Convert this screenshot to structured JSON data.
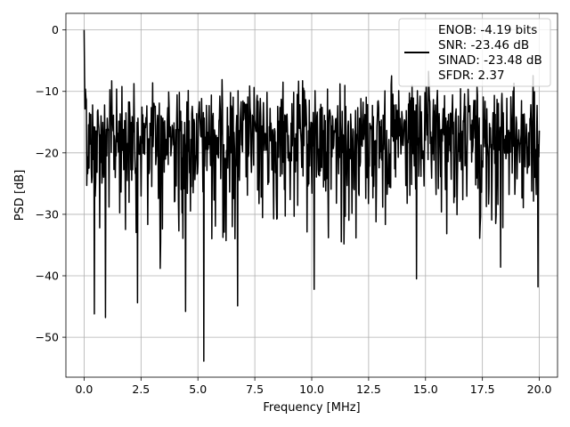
{
  "chart_data": {
    "type": "line",
    "title": "",
    "xlabel": "Frequency [MHz]",
    "ylabel": "PSD [dB]",
    "xlim": [
      -0.8,
      20.8
    ],
    "ylim": [
      -56.5,
      2.7
    ],
    "xticks": [
      0.0,
      2.5,
      5.0,
      7.5,
      10.0,
      12.5,
      15.0,
      17.5,
      20.0
    ],
    "xtick_labels": [
      "0.0",
      "2.5",
      "5.0",
      "7.5",
      "10.0",
      "12.5",
      "15.0",
      "17.5",
      "20.0"
    ],
    "yticks": [
      0,
      -10,
      -20,
      -30,
      -40,
      -50
    ],
    "ytick_labels": [
      "0",
      "−10",
      "−20",
      "−30",
      "−40",
      "−50"
    ],
    "grid": true,
    "legend_position": "top-right",
    "legend_lines": [
      "ENOB: -4.19 bits",
      "SNR: -23.46 dB",
      "SINAD: -23.48 dB",
      "SFDR: 2.37"
    ],
    "series": [
      {
        "name": "ENOB: -4.19 bits\nSNR: -23.46 dB\nSINAD: -23.48 dB\nSFDR: 2.37",
        "color": "#000000",
        "x_start": 0.0,
        "x_end": 20.0,
        "point_count": 1024,
        "noise_floor_db": -20,
        "peak": {
          "x": 0.0,
          "y": 0.0
        },
        "upper_envelope_db": -5.5,
        "notable_minima": [
          {
            "x": 0.45,
            "y": -46.2
          },
          {
            "x": 0.93,
            "y": -46.8
          },
          {
            "x": 2.35,
            "y": -44.4
          },
          {
            "x": 3.35,
            "y": -38.8
          },
          {
            "x": 4.45,
            "y": -45.8
          },
          {
            "x": 5.25,
            "y": -53.9
          },
          {
            "x": 6.75,
            "y": -44.9
          },
          {
            "x": 10.1,
            "y": -42.2
          },
          {
            "x": 14.6,
            "y": -40.5
          },
          {
            "x": 18.3,
            "y": -38.6
          },
          {
            "x": 19.95,
            "y": -41.8
          }
        ]
      }
    ]
  }
}
